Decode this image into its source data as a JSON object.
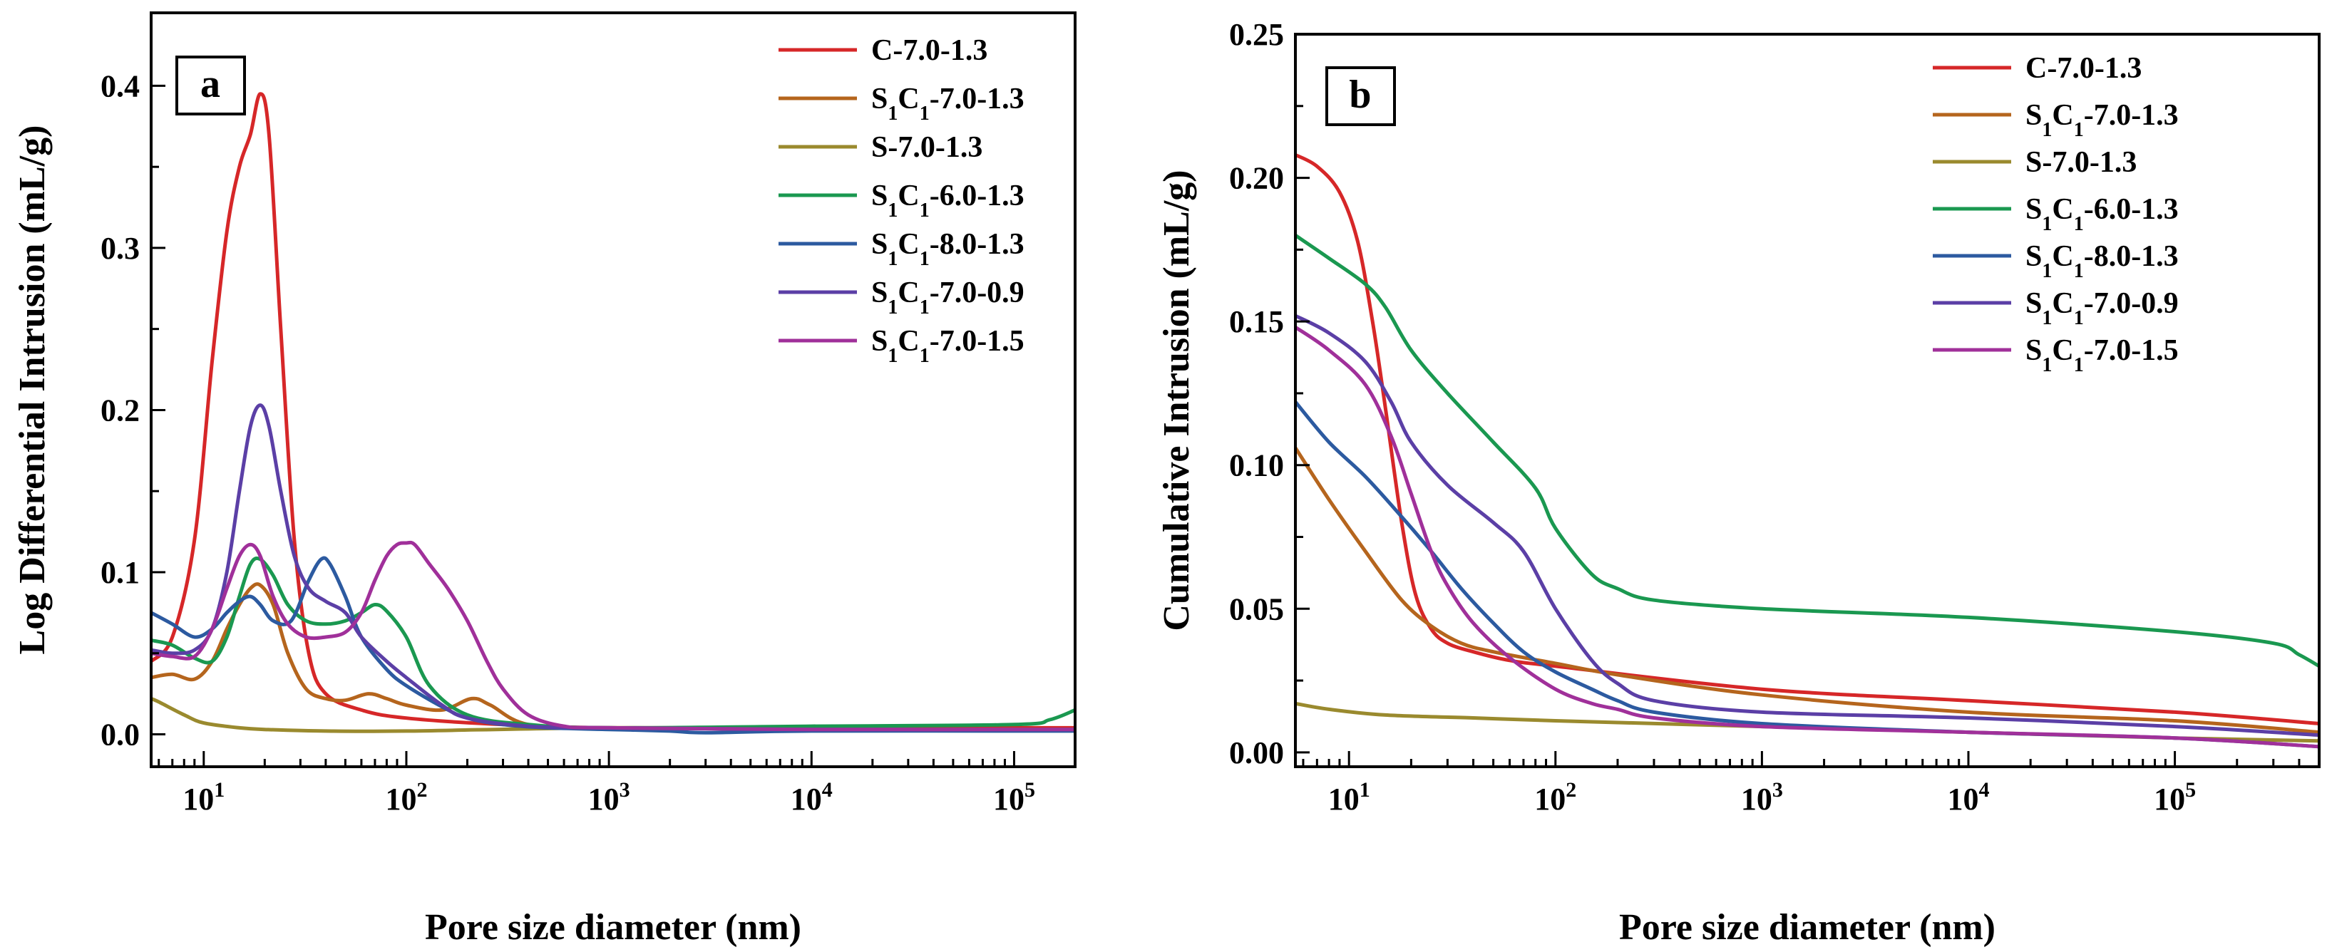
{
  "figure": {
    "xlabel_shared": "Pore size diameter (nm)"
  },
  "chart_data": [
    {
      "type": "line",
      "panel_label": "a",
      "title": "",
      "xlabel": "Pore size diameter (nm)",
      "ylabel": "Log Differential Intrusion (mL/g)",
      "xscale": "log",
      "xlim": [
        5.5,
        200000
      ],
      "ylim": [
        -0.02,
        0.445
      ],
      "x_ticks": [
        {
          "exp": "1"
        },
        {
          "exp": "2"
        },
        {
          "exp": "3"
        },
        {
          "exp": "4"
        },
        {
          "exp": "5"
        }
      ],
      "y_ticks": [
        "0.0",
        "0.1",
        "0.2",
        "0.3",
        "0.4"
      ],
      "legend_position": "top-right",
      "series": [
        {
          "name": "C-7.0-1.3",
          "legend": {
            "lead": "C",
            "sub1": "",
            "mid": "",
            "sub2": "",
            "tail": "-7.0-1.3"
          },
          "color": "#d62728",
          "x": [
            5.5,
            7,
            9,
            11,
            13,
            15,
            17,
            19,
            21,
            24,
            28,
            33,
            40,
            60,
            100,
            300,
            1000,
            10000,
            200000
          ],
          "y": [
            0.045,
            0.06,
            0.12,
            0.23,
            0.31,
            0.35,
            0.37,
            0.395,
            0.37,
            0.25,
            0.12,
            0.05,
            0.025,
            0.015,
            0.01,
            0.006,
            0.004,
            0.004,
            0.004
          ]
        },
        {
          "name": "S1C1-7.0-1.3",
          "legend": {
            "lead": "S",
            "sub1": "1",
            "mid": "C",
            "sub2": "1",
            "tail": "-7.0-1.3"
          },
          "color": "#b5651d",
          "x": [
            5.5,
            7,
            9,
            11,
            13,
            15,
            17,
            19,
            22,
            26,
            32,
            40,
            50,
            65,
            80,
            100,
            150,
            210,
            260,
            400,
            1000,
            10000,
            200000
          ],
          "y": [
            0.035,
            0.037,
            0.034,
            0.045,
            0.065,
            0.08,
            0.09,
            0.092,
            0.08,
            0.05,
            0.028,
            0.022,
            0.021,
            0.025,
            0.022,
            0.018,
            0.015,
            0.022,
            0.018,
            0.006,
            0.004,
            0.003,
            0.003
          ]
        },
        {
          "name": "S-7.0-1.3",
          "legend": {
            "lead": "S",
            "sub1": "",
            "mid": "",
            "sub2": "",
            "tail": "-7.0-1.3"
          },
          "color": "#9a8a2e",
          "x": [
            5.5,
            6,
            8,
            10,
            15,
            20,
            40,
            100,
            1000,
            10000,
            200000
          ],
          "y": [
            0.022,
            0.02,
            0.012,
            0.007,
            0.004,
            0.003,
            0.002,
            0.002,
            0.004,
            0.003,
            0.003
          ]
        },
        {
          "name": "S1C1-6.0-1.3",
          "legend": {
            "lead": "S",
            "sub1": "1",
            "mid": "C",
            "sub2": "1",
            "tail": "-6.0-1.3"
          },
          "color": "#1a9850",
          "x": [
            5.5,
            7,
            9,
            11,
            13,
            15,
            17,
            19,
            22,
            26,
            32,
            40,
            50,
            60,
            70,
            80,
            100,
            130,
            200,
            400,
            1000,
            10000,
            100000,
            150000,
            200000
          ],
          "y": [
            0.058,
            0.055,
            0.047,
            0.045,
            0.06,
            0.085,
            0.105,
            0.108,
            0.098,
            0.08,
            0.07,
            0.068,
            0.07,
            0.075,
            0.08,
            0.076,
            0.06,
            0.03,
            0.012,
            0.006,
            0.004,
            0.005,
            0.006,
            0.009,
            0.015
          ]
        },
        {
          "name": "S1C1-8.0-1.3",
          "legend": {
            "lead": "S",
            "sub1": "1",
            "mid": "C",
            "sub2": "1",
            "tail": "-8.0-1.3"
          },
          "color": "#2c5aa0",
          "x": [
            5.5,
            7,
            9,
            11,
            13,
            15,
            17,
            19,
            22,
            27,
            33,
            38,
            42,
            50,
            60,
            80,
            100,
            150,
            200,
            300,
            500,
            1000,
            2000,
            3000,
            10000,
            200000
          ],
          "y": [
            0.075,
            0.068,
            0.06,
            0.065,
            0.075,
            0.082,
            0.085,
            0.08,
            0.07,
            0.07,
            0.095,
            0.108,
            0.105,
            0.085,
            0.06,
            0.04,
            0.03,
            0.017,
            0.01,
            0.006,
            0.004,
            0.003,
            0.002,
            0.001,
            0.002,
            0.002
          ]
        },
        {
          "name": "S1C1-7.0-0.9",
          "legend": {
            "lead": "S",
            "sub1": "1",
            "mid": "C",
            "sub2": "1",
            "tail": "-7.0-0.9"
          },
          "color": "#5b3fa6",
          "x": [
            5.5,
            7,
            9,
            11,
            13,
            15,
            17,
            19,
            21,
            24,
            28,
            33,
            40,
            50,
            60,
            80,
            100,
            150,
            200,
            400,
            1000,
            10000,
            200000
          ],
          "y": [
            0.052,
            0.05,
            0.052,
            0.065,
            0.1,
            0.15,
            0.19,
            0.203,
            0.19,
            0.15,
            0.11,
            0.09,
            0.082,
            0.075,
            0.06,
            0.045,
            0.035,
            0.018,
            0.01,
            0.005,
            0.004,
            0.003,
            0.003
          ]
        },
        {
          "name": "S1C1-7.0-1.5",
          "legend": {
            "lead": "S",
            "sub1": "1",
            "mid": "C",
            "sub2": "1",
            "tail": "-7.0-1.5"
          },
          "color": "#a0309a",
          "x": [
            5.5,
            7,
            9,
            11,
            13,
            15,
            17,
            19,
            22,
            26,
            32,
            40,
            50,
            60,
            70,
            80,
            90,
            100,
            110,
            130,
            160,
            200,
            250,
            300,
            400,
            600,
            1000,
            10000,
            200000
          ],
          "y": [
            0.05,
            0.048,
            0.048,
            0.065,
            0.09,
            0.11,
            0.117,
            0.11,
            0.085,
            0.068,
            0.06,
            0.06,
            0.063,
            0.075,
            0.095,
            0.11,
            0.117,
            0.118,
            0.117,
            0.105,
            0.09,
            0.07,
            0.045,
            0.028,
            0.012,
            0.005,
            0.004,
            0.003,
            0.003
          ]
        }
      ]
    },
    {
      "type": "line",
      "panel_label": "b",
      "title": "",
      "xlabel": "Pore size diameter (nm)",
      "ylabel": "Cumulative Intrusion (mL/g)",
      "xscale": "log",
      "xlim": [
        5.5,
        500000
      ],
      "ylim": [
        -0.005,
        0.25
      ],
      "x_ticks": [
        {
          "exp": "1"
        },
        {
          "exp": "2"
        },
        {
          "exp": "3"
        },
        {
          "exp": "4"
        },
        {
          "exp": "5"
        }
      ],
      "y_ticks": [
        "0.00",
        "0.05",
        "0.10",
        "0.15",
        "0.20",
        "0.25"
      ],
      "legend_position": "top-right",
      "series": [
        {
          "name": "C-7.0-1.3",
          "legend": {
            "lead": "C",
            "sub1": "",
            "mid": "",
            "sub2": "",
            "tail": "-7.0-1.3"
          },
          "color": "#d62728",
          "x": [
            5.5,
            7,
            9,
            11,
            13,
            15,
            18,
            21,
            25,
            30,
            40,
            60,
            100,
            1000,
            10000,
            100000,
            500000
          ],
          "y": [
            0.208,
            0.204,
            0.195,
            0.178,
            0.15,
            0.12,
            0.08,
            0.055,
            0.043,
            0.038,
            0.035,
            0.032,
            0.03,
            0.022,
            0.018,
            0.014,
            0.01
          ]
        },
        {
          "name": "S1C1-7.0-1.3",
          "legend": {
            "lead": "S",
            "sub1": "1",
            "mid": "C",
            "sub2": "1",
            "tail": "-7.0-1.3"
          },
          "color": "#b5651d",
          "x": [
            5.5,
            8,
            12,
            18,
            25,
            35,
            50,
            100,
            200,
            1000,
            10000,
            100000,
            500000
          ],
          "y": [
            0.106,
            0.088,
            0.07,
            0.053,
            0.044,
            0.038,
            0.035,
            0.031,
            0.027,
            0.02,
            0.014,
            0.011,
            0.007
          ]
        },
        {
          "name": "S-7.0-1.3",
          "legend": {
            "lead": "S",
            "sub1": "",
            "mid": "",
            "sub2": "",
            "tail": "-7.0-1.3"
          },
          "color": "#9a8a2e",
          "x": [
            5.5,
            8,
            15,
            40,
            100,
            1000,
            10000,
            100000,
            500000
          ],
          "y": [
            0.017,
            0.015,
            0.013,
            0.012,
            0.011,
            0.009,
            0.007,
            0.005,
            0.004
          ]
        },
        {
          "name": "S1C1-6.0-1.3",
          "legend": {
            "lead": "S",
            "sub1": "1",
            "mid": "C",
            "sub2": "1",
            "tail": "-6.0-1.3"
          },
          "color": "#1a9850",
          "x": [
            5.5,
            8,
            12,
            15,
            20,
            30,
            50,
            80,
            100,
            150,
            200,
            300,
            1000,
            10000,
            100000,
            300000,
            400000,
            500000
          ],
          "y": [
            0.18,
            0.172,
            0.163,
            0.155,
            0.14,
            0.125,
            0.108,
            0.092,
            0.078,
            0.062,
            0.057,
            0.053,
            0.05,
            0.047,
            0.042,
            0.038,
            0.034,
            0.03
          ]
        },
        {
          "name": "S1C1-8.0-1.3",
          "legend": {
            "lead": "S",
            "sub1": "1",
            "mid": "C",
            "sub2": "1",
            "tail": "-8.0-1.3"
          },
          "color": "#2c5aa0",
          "x": [
            5.5,
            8,
            12,
            18,
            25,
            35,
            50,
            70,
            100,
            150,
            200,
            300,
            1000,
            10000,
            100000,
            500000
          ],
          "y": [
            0.122,
            0.108,
            0.096,
            0.082,
            0.07,
            0.057,
            0.045,
            0.035,
            0.028,
            0.022,
            0.018,
            0.014,
            0.01,
            0.007,
            0.005,
            0.002
          ]
        },
        {
          "name": "S1C1-7.0-0.9",
          "legend": {
            "lead": "S",
            "sub1": "1",
            "mid": "C",
            "sub2": "1",
            "tail": "-7.0-0.9"
          },
          "color": "#5b3fa6",
          "x": [
            5.5,
            8,
            12,
            16,
            20,
            30,
            50,
            70,
            100,
            150,
            200,
            300,
            1000,
            10000,
            100000,
            500000
          ],
          "y": [
            0.152,
            0.146,
            0.136,
            0.122,
            0.108,
            0.093,
            0.08,
            0.07,
            0.05,
            0.032,
            0.024,
            0.018,
            0.014,
            0.012,
            0.009,
            0.006
          ]
        },
        {
          "name": "S1C1-7.0-1.5",
          "legend": {
            "lead": "S",
            "sub1": "1",
            "mid": "C",
            "sub2": "1",
            "tail": "-7.0-1.5"
          },
          "color": "#a0309a",
          "x": [
            5.5,
            8,
            12,
            16,
            20,
            25,
            30,
            40,
            60,
            100,
            150,
            200,
            300,
            1000,
            10000,
            100000,
            500000
          ],
          "y": [
            0.148,
            0.14,
            0.128,
            0.11,
            0.09,
            0.07,
            0.058,
            0.045,
            0.033,
            0.022,
            0.017,
            0.015,
            0.012,
            0.009,
            0.007,
            0.005,
            0.002
          ]
        }
      ]
    }
  ]
}
